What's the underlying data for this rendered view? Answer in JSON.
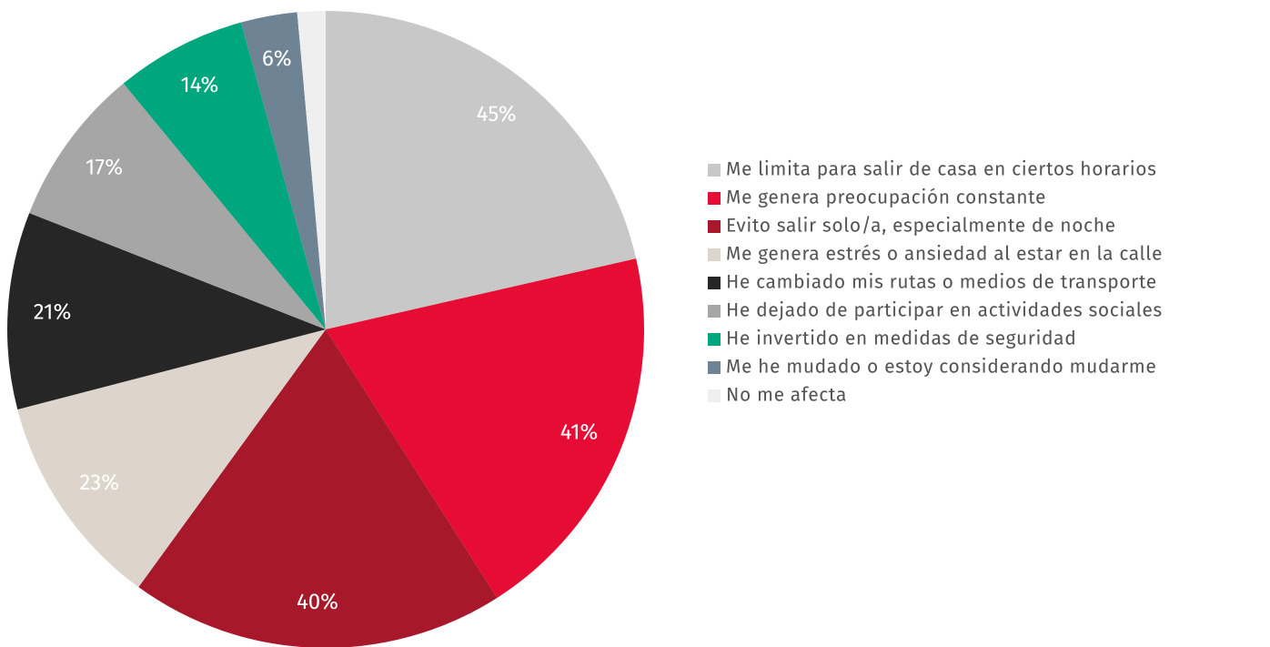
{
  "chart_data": {
    "type": "pie",
    "categories": [
      "Me limita para salir de casa en ciertos horarios",
      "Me genera preocupación constante",
      "Evito salir solo/a, especialmente de noche",
      "Me genera estrés o ansiedad al estar en la calle",
      "He cambiado mis rutas o medios de transporte",
      "He dejado de participar en actividades sociales",
      "He invertido en medidas de seguridad",
      "Me he mudado o estoy considerando mudarme",
      "No me afecta"
    ],
    "values": [
      45,
      41,
      40,
      23,
      21,
      17,
      14,
      6,
      3
    ],
    "value_labels": [
      "45%",
      "41%",
      "40%",
      "23%",
      "21%",
      "17%",
      "14%",
      "6%",
      null
    ],
    "colors": [
      "#c8c8c8",
      "#e60c34",
      "#a8182b",
      "#ddd5cb",
      "#262626",
      "#a6a6a6",
      "#00a67e",
      "#6e8494",
      "#efefef"
    ],
    "legend": "right"
  }
}
